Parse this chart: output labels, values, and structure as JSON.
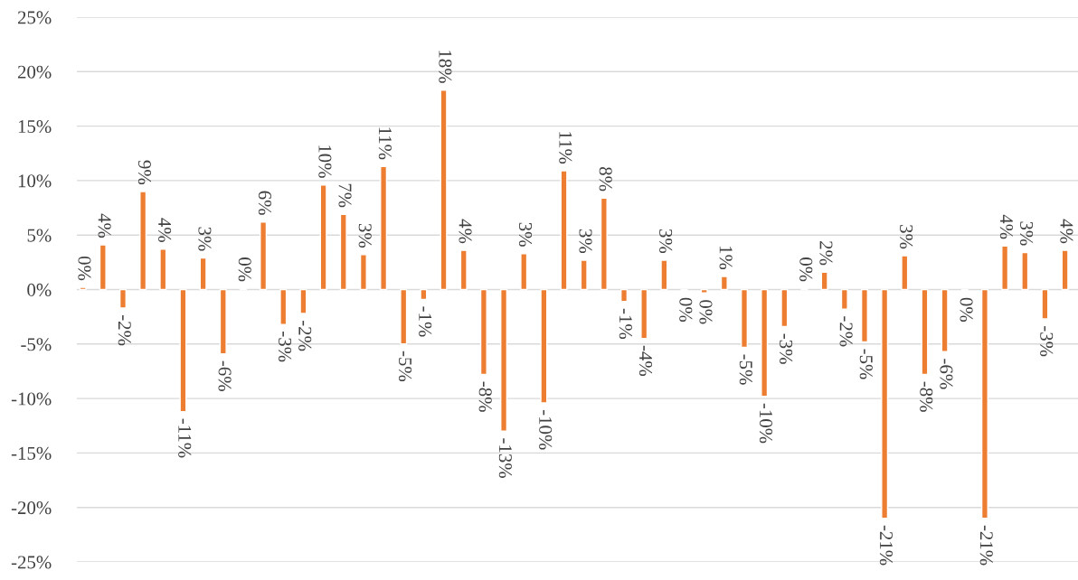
{
  "chart_data": {
    "type": "bar",
    "categories": [
      null,
      null,
      null,
      null,
      null,
      null,
      null,
      null,
      null,
      null,
      null,
      null,
      null,
      null,
      null,
      null,
      null,
      null,
      null,
      null,
      null,
      null,
      null,
      null,
      null,
      null,
      null,
      null,
      null,
      null,
      null,
      null,
      null,
      null,
      null,
      null,
      null,
      null,
      null,
      null,
      null,
      null,
      null,
      null,
      null,
      null,
      null,
      null,
      null,
      null
    ],
    "values": [
      0.2,
      4.1,
      -1.7,
      9.0,
      3.7,
      -11.2,
      2.9,
      -5.9,
      0.1,
      6.2,
      -3.2,
      -2.2,
      9.6,
      6.9,
      3.2,
      11.3,
      -5.0,
      -0.9,
      18.3,
      3.6,
      -7.8,
      -13.0,
      3.3,
      -10.4,
      10.9,
      2.7,
      8.4,
      -1.1,
      -4.5,
      2.7,
      -0.1,
      -0.3,
      1.2,
      -5.3,
      -9.8,
      -3.4,
      0.1,
      1.6,
      -1.8,
      -4.8,
      -21.0,
      3.1,
      -7.8,
      -5.7,
      -0.1,
      -21.0,
      4.0,
      3.4,
      -2.7,
      3.6
    ],
    "value_labels": [
      "0%",
      "4%",
      "-2%",
      "9%",
      "4%",
      "-11%",
      "3%",
      "-6%",
      "0%",
      "6%",
      "-3%",
      "-2%",
      "10%",
      "7%",
      "3%",
      "11%",
      "-5%",
      "-1%",
      "18%",
      "4%",
      "-8%",
      "-13%",
      "3%",
      "-10%",
      "11%",
      "3%",
      "8%",
      "-1%",
      "-4%",
      "3%",
      "0%",
      "0%",
      "1%",
      "-5%",
      "-10%",
      "-3%",
      "0%",
      "2%",
      "-2%",
      "-5%",
      "-21%",
      "3%",
      "-8%",
      "-6%",
      "0%",
      "-21%",
      "4%",
      "3%",
      "-3%",
      "4%"
    ],
    "color": "#ed7d31",
    "ylim": [
      -25,
      25
    ],
    "yticks": [
      {
        "value": -25,
        "label": "-25%"
      },
      {
        "value": -20,
        "label": "-20%"
      },
      {
        "value": -15,
        "label": "-15%"
      },
      {
        "value": -10,
        "label": "-10%"
      },
      {
        "value": -5,
        "label": "-5%"
      },
      {
        "value": 0,
        "label": "0%"
      },
      {
        "value": 5,
        "label": "5%"
      },
      {
        "value": 10,
        "label": "10%"
      },
      {
        "value": 15,
        "label": "15%"
      },
      {
        "value": 20,
        "label": "20%"
      },
      {
        "value": 25,
        "label": "25%"
      }
    ],
    "grid": "y",
    "tick_labels": "y"
  }
}
